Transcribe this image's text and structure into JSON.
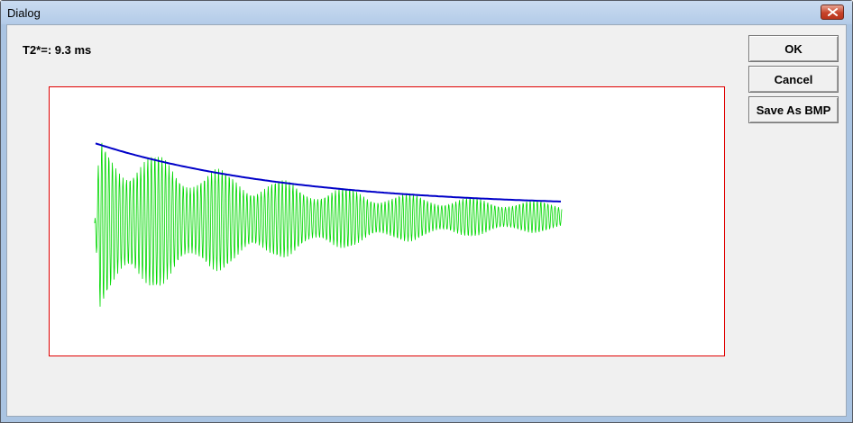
{
  "window": {
    "title": "Dialog"
  },
  "result": {
    "t2_label": "T2*=: 9.3 ms"
  },
  "buttons": {
    "ok": "OK",
    "cancel": "Cancel",
    "save_bmp": "Save As BMP"
  },
  "colors": {
    "signal": "#00d800",
    "fit": "#0000c8",
    "plot_border": "#e00000"
  },
  "chart_data": {
    "type": "line",
    "title": "",
    "xlabel": "",
    "ylabel": "",
    "grid": false,
    "series": [
      {
        "description": "oscillating signal decaying exponentially",
        "color": "#00d800"
      },
      {
        "description": "exponential decay envelope fit",
        "color": "#0000c8"
      }
    ]
  }
}
